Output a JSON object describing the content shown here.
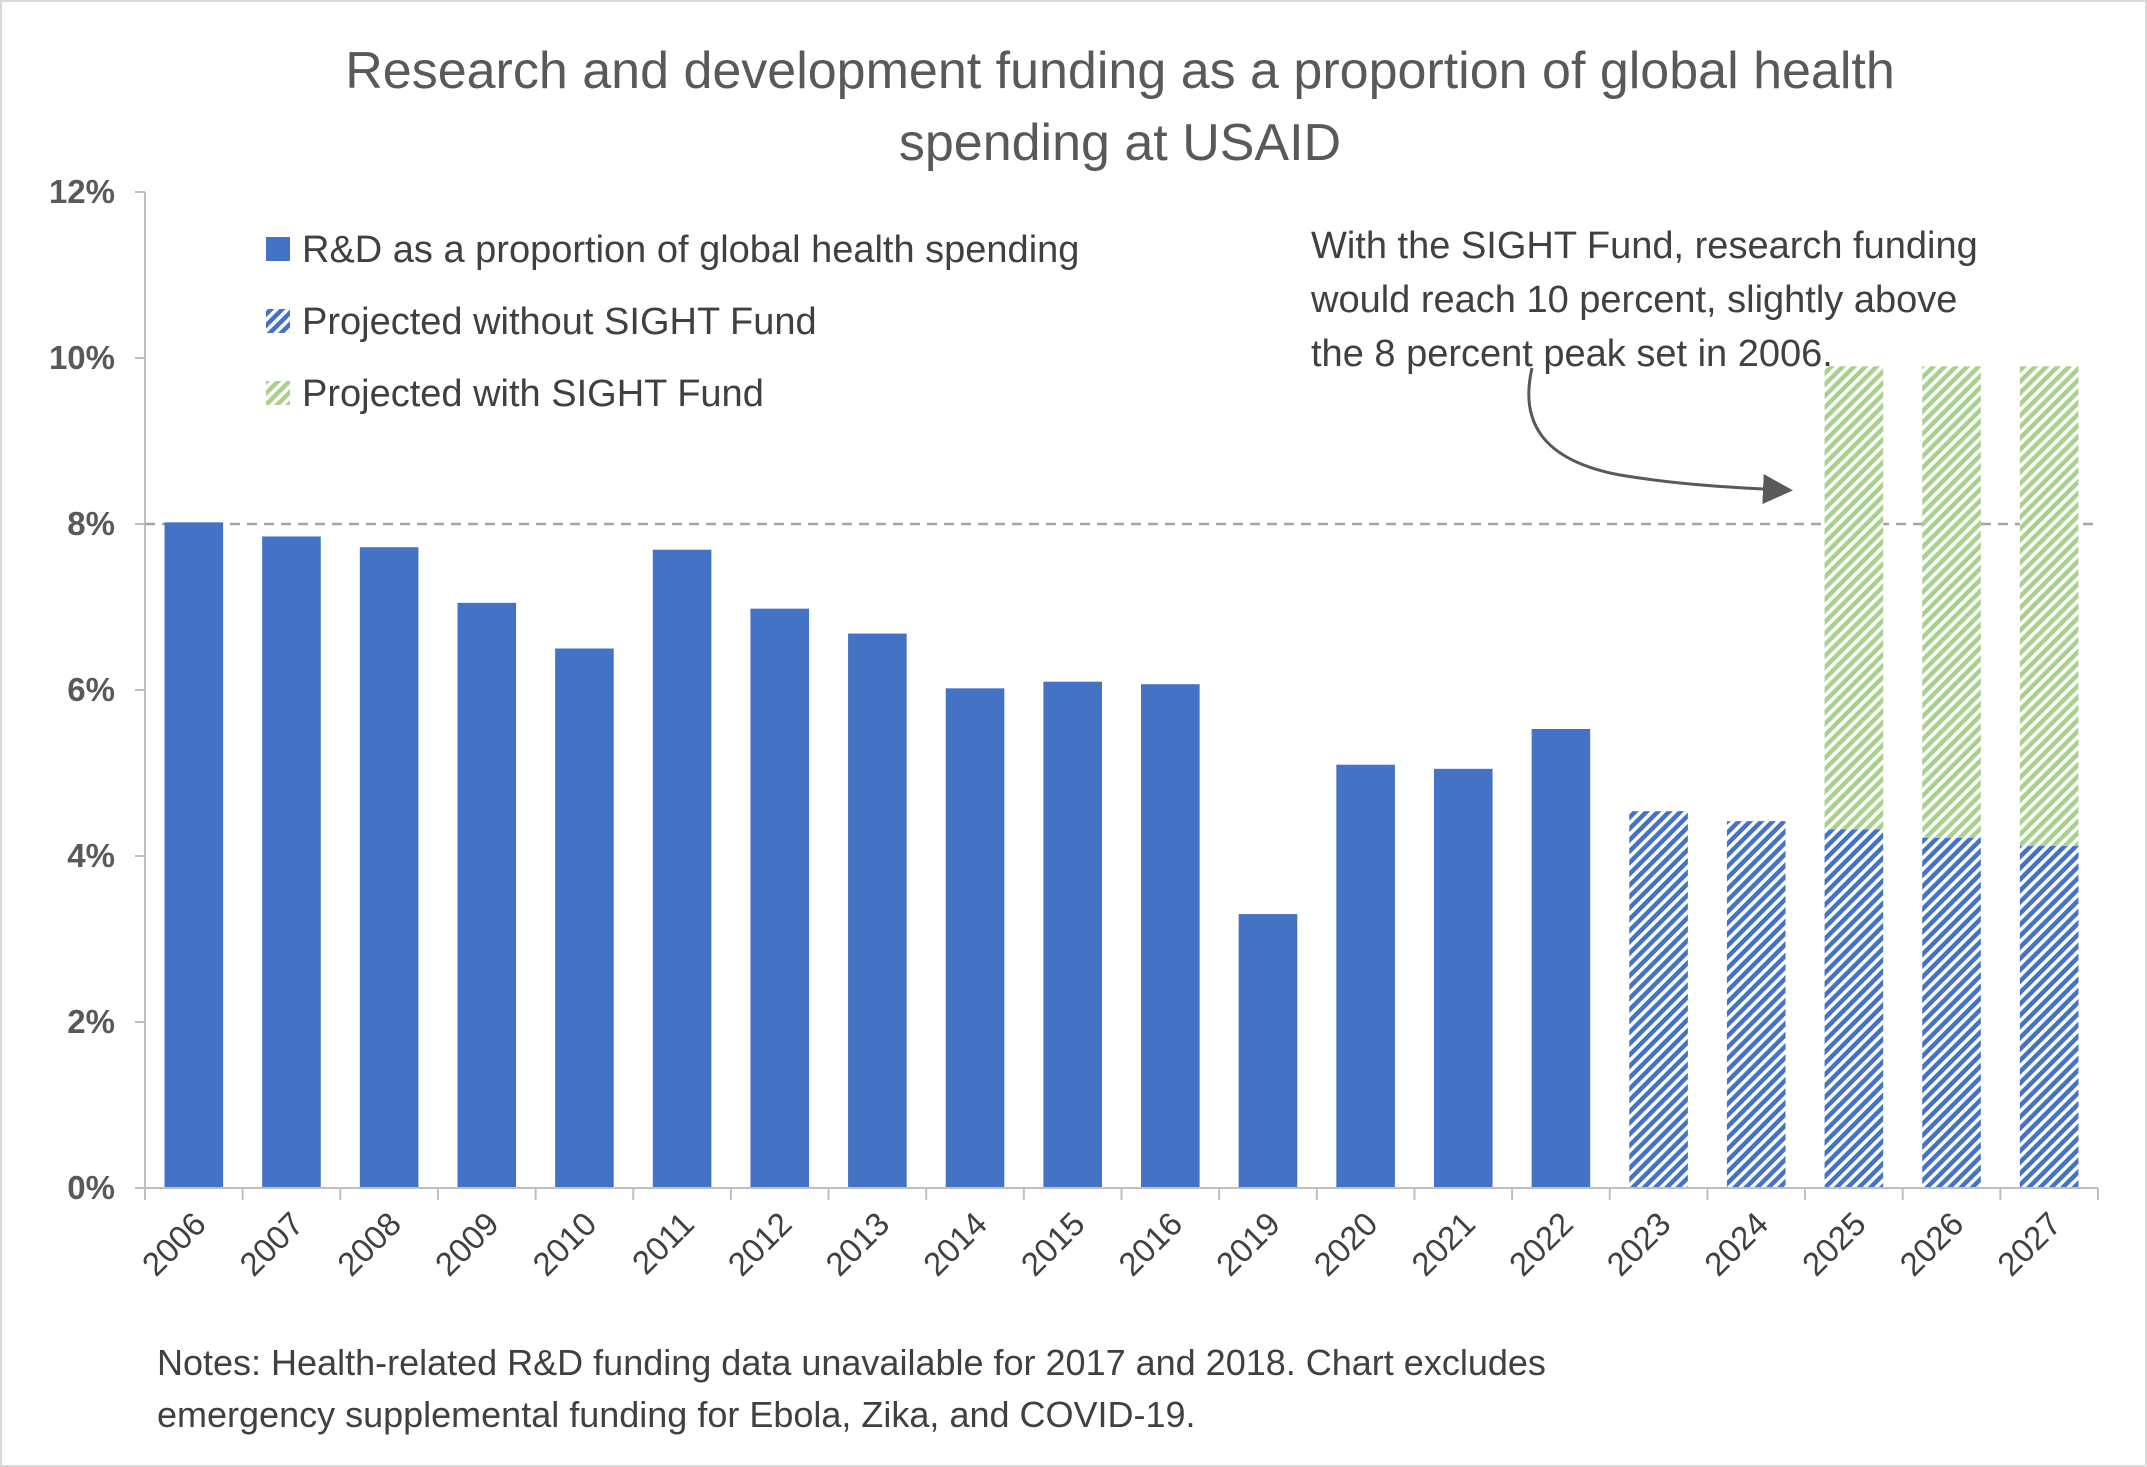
{
  "chart_data": {
    "type": "bar",
    "title": "Research and development funding as a proportion of global health spending at USAID",
    "title_lines": [
      "Research and development funding as a proportion of global health",
      "spending at USAID"
    ],
    "xlabel": "",
    "ylabel": "",
    "ylim": [
      0,
      12
    ],
    "y_ticks": [
      "0%",
      "2%",
      "4%",
      "6%",
      "8%",
      "10%",
      "12%"
    ],
    "y_tick_values": [
      0,
      2,
      4,
      6,
      8,
      10,
      12
    ],
    "grid": false,
    "legend_position": "top-left",
    "categories": [
      "2006",
      "2007",
      "2008",
      "2009",
      "2010",
      "2011",
      "2012",
      "2013",
      "2014",
      "2015",
      "2016",
      "2019",
      "2020",
      "2021",
      "2022",
      "2023",
      "2024",
      "2025",
      "2026",
      "2027"
    ],
    "series": [
      {
        "name": "R&D as a proportion of global health spending",
        "color": "#4472C4",
        "pattern": "solid",
        "values": [
          8.02,
          7.85,
          7.72,
          7.05,
          6.5,
          7.69,
          6.98,
          6.68,
          6.02,
          6.1,
          6.07,
          3.3,
          5.1,
          5.05,
          5.53,
          null,
          null,
          null,
          null,
          null
        ]
      },
      {
        "name": "Projected without SIGHT Fund",
        "color": "#4472C4",
        "pattern": "diagonal-stripe",
        "values": [
          null,
          null,
          null,
          null,
          null,
          null,
          null,
          null,
          null,
          null,
          null,
          null,
          null,
          null,
          null,
          4.54,
          4.42,
          4.32,
          4.22,
          4.12
        ]
      },
      {
        "name": "Projected with SIGHT Fund",
        "color": "#A9D18E",
        "pattern": "diagonal-stripe",
        "stacked_on": "Projected without SIGHT Fund",
        "values": [
          null,
          null,
          null,
          null,
          null,
          null,
          null,
          null,
          null,
          null,
          null,
          null,
          null,
          null,
          null,
          null,
          null,
          5.58,
          5.68,
          5.78
        ]
      }
    ],
    "reference_line": {
      "y": 8,
      "style": "dashed",
      "color": "#A6A6A6"
    },
    "annotation": {
      "lines": [
        "With the SIGHT Fund, research funding",
        "would reach 10 percent, slightly above",
        "the 8 percent peak  set in 2006."
      ]
    },
    "notes": [
      "Notes: Health-related R&D funding data unavailable for 2017 and 2018. Chart excludes",
      "emergency supplemental funding for Ebola, Zika, and COVID-19."
    ]
  }
}
